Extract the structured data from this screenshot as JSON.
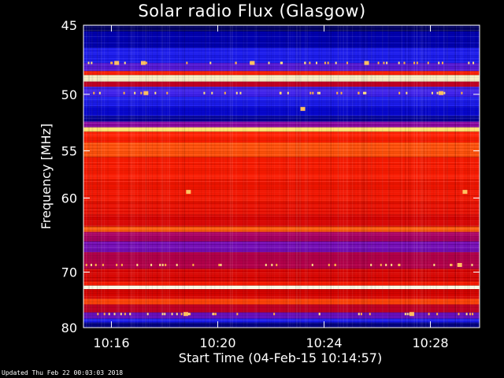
{
  "chart_data": {
    "type": "heatmap",
    "title": "Solar radio Flux (Glasgow)",
    "ylabel": "Frequency [MHz]",
    "xlabel": "Start Time (04-Feb-15 10:14:57)",
    "x_ticks": [
      "10:16",
      "10:20",
      "10:24",
      "10:28"
    ],
    "x_tick_minutes": [
      16,
      20,
      24,
      28
    ],
    "xlim_minutes": [
      14.95,
      29.85
    ],
    "y_ticks": [
      45,
      50,
      55,
      60,
      70,
      80
    ],
    "y_tick_labels": [
      "45",
      "50",
      "55",
      "60",
      "70",
      "80"
    ],
    "ylim": [
      45,
      80
    ],
    "y_scale": "reciprocal",
    "colormap": "blue-red-yellow-white",
    "intensity_bands": [
      {
        "f0": 45.0,
        "f1": 45.4,
        "level": 0.05
      },
      {
        "f0": 45.4,
        "f1": 46.5,
        "level": 0.12
      },
      {
        "f0": 46.5,
        "f1": 47.6,
        "level": 0.22
      },
      {
        "f0": 47.6,
        "f1": 48.2,
        "level": 0.3
      },
      {
        "f0": 48.2,
        "f1": 48.5,
        "level": 0.6
      },
      {
        "f0": 48.5,
        "f1": 49.0,
        "level": 0.98
      },
      {
        "f0": 49.0,
        "f1": 49.4,
        "level": 0.45
      },
      {
        "f0": 49.4,
        "f1": 50.2,
        "level": 0.28
      },
      {
        "f0": 50.2,
        "f1": 51.0,
        "level": 0.22
      },
      {
        "f0": 51.0,
        "f1": 51.8,
        "level": 0.16
      },
      {
        "f0": 51.8,
        "f1": 52.3,
        "level": 0.1
      },
      {
        "f0": 52.3,
        "f1": 52.8,
        "level": 0.35
      },
      {
        "f0": 52.8,
        "f1": 53.2,
        "level": 0.92
      },
      {
        "f0": 53.2,
        "f1": 54.2,
        "level": 0.62
      },
      {
        "f0": 54.2,
        "f1": 55.6,
        "level": 0.7
      },
      {
        "f0": 55.6,
        "f1": 58.0,
        "level": 0.6
      },
      {
        "f0": 58.0,
        "f1": 60.5,
        "level": 0.58
      },
      {
        "f0": 60.5,
        "f1": 62.0,
        "level": 0.55
      },
      {
        "f0": 62.0,
        "f1": 63.5,
        "level": 0.5
      },
      {
        "f0": 63.5,
        "f1": 64.2,
        "level": 0.72
      },
      {
        "f0": 64.2,
        "f1": 65.5,
        "level": 0.4
      },
      {
        "f0": 65.5,
        "f1": 67.0,
        "level": 0.33
      },
      {
        "f0": 67.0,
        "f1": 69.5,
        "level": 0.42
      },
      {
        "f0": 69.5,
        "f1": 71.5,
        "level": 0.5
      },
      {
        "f0": 71.5,
        "f1": 72.2,
        "level": 0.6
      },
      {
        "f0": 72.2,
        "f1": 72.8,
        "level": 1.0
      },
      {
        "f0": 72.8,
        "f1": 74.5,
        "level": 0.5
      },
      {
        "f0": 74.5,
        "f1": 75.5,
        "level": 0.68
      },
      {
        "f0": 75.5,
        "f1": 77.0,
        "level": 0.45
      },
      {
        "f0": 77.0,
        "f1": 78.2,
        "level": 0.32
      },
      {
        "f0": 78.2,
        "f1": 79.0,
        "level": 0.22
      },
      {
        "f0": 79.0,
        "f1": 80.0,
        "level": 0.08
      }
    ],
    "bright_spots": [
      {
        "t": 17.2,
        "f": 47.6
      },
      {
        "t": 17.3,
        "f": 49.9
      },
      {
        "t": 18.9,
        "f": 59.3
      },
      {
        "t": 29.3,
        "f": 59.3
      },
      {
        "t": 23.2,
        "f": 51.2
      },
      {
        "t": 18.8,
        "f": 77.3
      },
      {
        "t": 27.3,
        "f": 77.3
      },
      {
        "t": 29.1,
        "f": 68.9
      },
      {
        "t": 16.2,
        "f": 47.6
      },
      {
        "t": 21.3,
        "f": 47.6
      },
      {
        "t": 25.6,
        "f": 47.6
      },
      {
        "t": 28.4,
        "f": 49.9
      }
    ]
  },
  "footer": {
    "updated": "Updated Thu Feb 22 00:03:03 2018"
  }
}
